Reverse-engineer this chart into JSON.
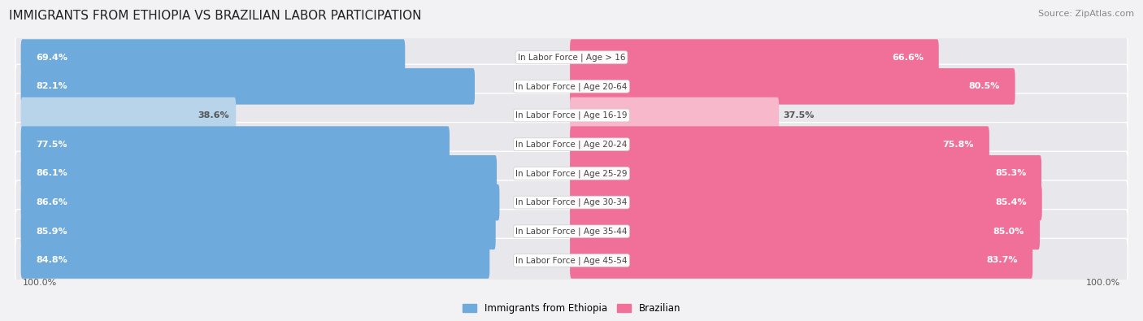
{
  "title": "IMMIGRANTS FROM ETHIOPIA VS BRAZILIAN LABOR PARTICIPATION",
  "source": "Source: ZipAtlas.com",
  "categories": [
    "In Labor Force | Age > 16",
    "In Labor Force | Age 20-64",
    "In Labor Force | Age 16-19",
    "In Labor Force | Age 20-24",
    "In Labor Force | Age 25-29",
    "In Labor Force | Age 30-34",
    "In Labor Force | Age 35-44",
    "In Labor Force | Age 45-54"
  ],
  "ethiopia_values": [
    69.4,
    82.1,
    38.6,
    77.5,
    86.1,
    86.6,
    85.9,
    84.8
  ],
  "brazilian_values": [
    66.6,
    80.5,
    37.5,
    75.8,
    85.3,
    85.4,
    85.0,
    83.7
  ],
  "ethiopia_color": "#6eaadb",
  "ethiopia_color_light": "#b8d4ea",
  "brazilian_color": "#f0709a",
  "brazilian_color_light": "#f8b8cc",
  "row_bg_color": "#e8e8ec",
  "background_color": "#f2f2f4",
  "axis_label_left": "100.0%",
  "axis_label_right": "100.0%",
  "legend_ethiopia": "Immigrants from Ethiopia",
  "legend_brazilian": "Brazilian",
  "title_fontsize": 11,
  "source_fontsize": 8,
  "bar_label_fontsize": 8,
  "category_fontsize": 7.5
}
